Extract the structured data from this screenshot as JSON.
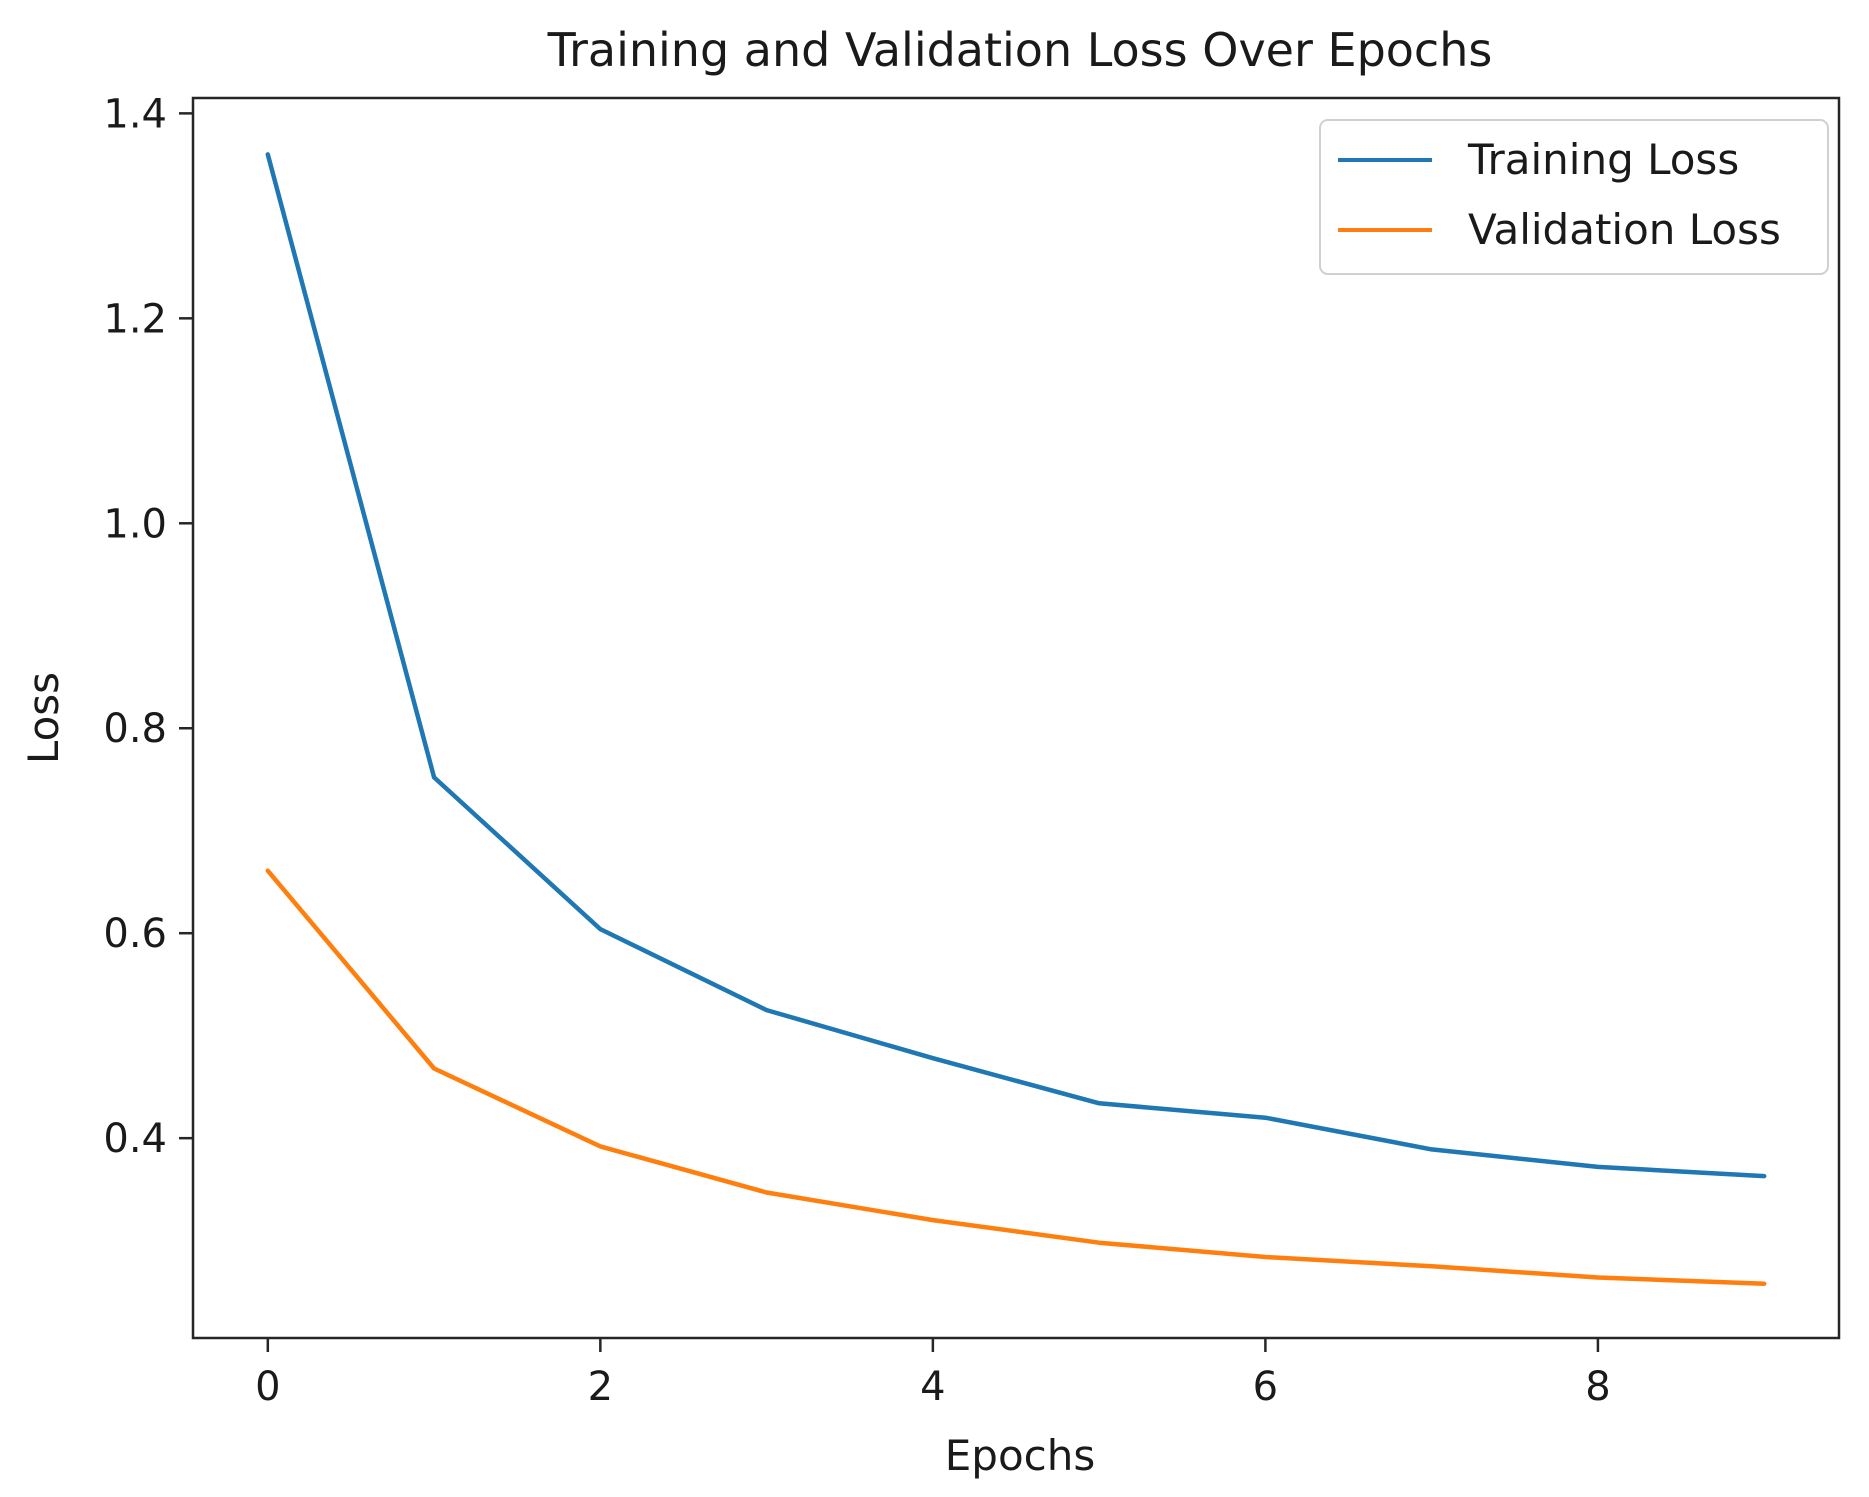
{
  "chart_data": {
    "type": "line",
    "title": "Training and Validation Loss Over Epochs",
    "xlabel": "Epochs",
    "ylabel": "Loss",
    "x": [
      0,
      1,
      2,
      3,
      4,
      5,
      6,
      7,
      8,
      9
    ],
    "xticks": [
      "0",
      "2",
      "4",
      "6",
      "8"
    ],
    "yticks": [
      "0.4",
      "0.6",
      "0.8",
      "1.0",
      "1.2",
      "1.4"
    ],
    "xlim": [
      -0.45,
      9.45
    ],
    "ylim": [
      0.205,
      1.415
    ],
    "grid": false,
    "legend_position": "top-right",
    "series": [
      {
        "name": "Training Loss",
        "color": "#1f77b4",
        "values": [
          1.36,
          0.752,
          0.604,
          0.525,
          0.478,
          0.434,
          0.42,
          0.389,
          0.372,
          0.363
        ]
      },
      {
        "name": "Validation Loss",
        "color": "#ff7f0e",
        "values": [
          0.661,
          0.468,
          0.392,
          0.347,
          0.32,
          0.298,
          0.284,
          0.275,
          0.264,
          0.258
        ]
      }
    ]
  }
}
